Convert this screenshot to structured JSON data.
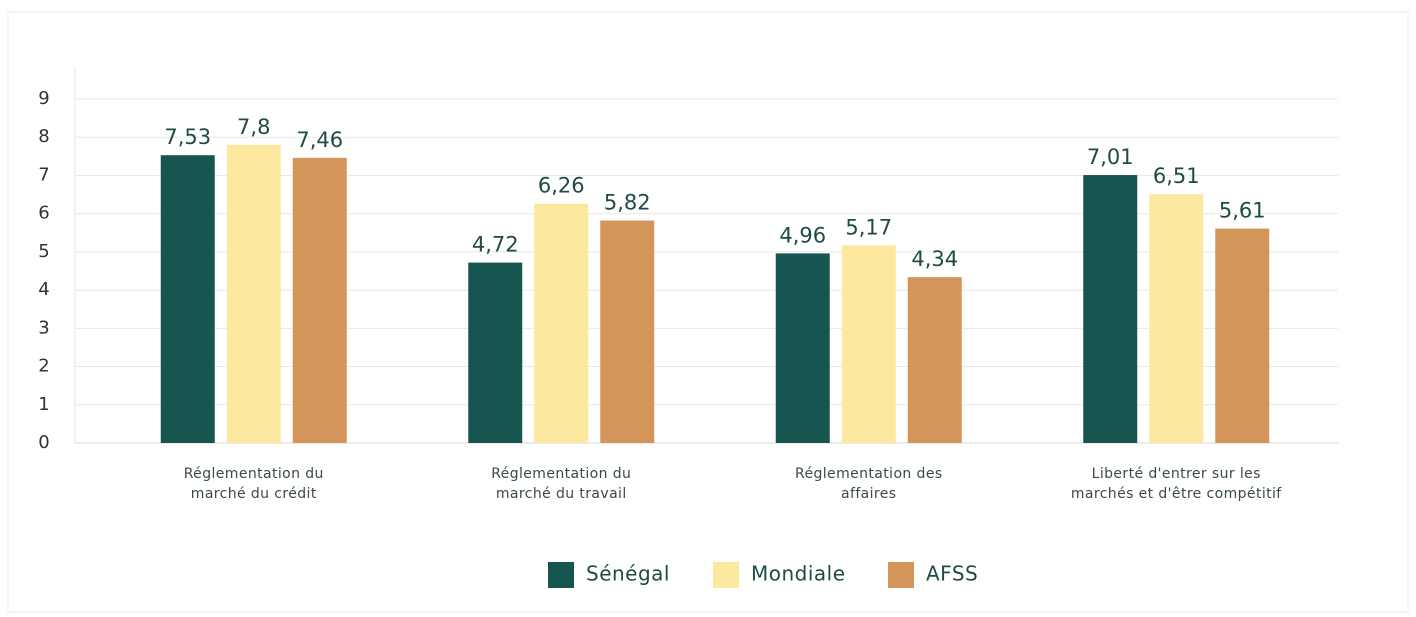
{
  "chart_data": {
    "type": "bar",
    "categories": [
      [
        "Réglementation du",
        "marché du crédit"
      ],
      [
        "Réglementation du",
        "marché du travail"
      ],
      [
        "Réglementation des",
        "affaires"
      ],
      [
        "Liberté d'entrer sur les",
        "marchés et d'être compétitif"
      ]
    ],
    "series": [
      {
        "name": "Sénégal",
        "color": "#175550",
        "values": [
          7.53,
          4.72,
          4.96,
          7.01
        ],
        "value_labels": [
          "7,53",
          "4,72",
          "4,96",
          "7,01"
        ]
      },
      {
        "name": "Mondiale",
        "color": "#fce89e",
        "values": [
          7.8,
          6.26,
          5.17,
          6.51
        ],
        "value_labels": [
          "7,8",
          "6,26",
          "5,17",
          "6,51"
        ]
      },
      {
        "name": "AFSS",
        "color": "#d4955a",
        "values": [
          7.46,
          5.82,
          4.34,
          5.61
        ],
        "value_labels": [
          "7,46",
          "5,82",
          "4,34",
          "5,61"
        ]
      }
    ],
    "ylim": [
      0,
      9
    ],
    "yticks": [
      0,
      1,
      2,
      3,
      4,
      5,
      6,
      7,
      8,
      9
    ],
    "grid": true,
    "legend": "bottom"
  }
}
